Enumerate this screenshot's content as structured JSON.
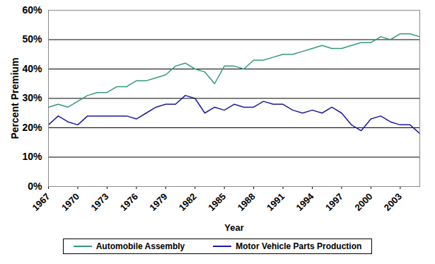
{
  "chart_data": {
    "type": "line",
    "x_label": "Year",
    "y_label": "Percent Premium",
    "x": [
      1967,
      1968,
      1969,
      1970,
      1971,
      1972,
      1973,
      1974,
      1975,
      1976,
      1977,
      1978,
      1979,
      1980,
      1981,
      1982,
      1983,
      1984,
      1985,
      1986,
      1987,
      1988,
      1989,
      1990,
      1991,
      1992,
      1993,
      1994,
      1995,
      1996,
      1997,
      1998,
      1999,
      2000,
      2001,
      2002,
      2003,
      2004,
      2005
    ],
    "series": [
      {
        "name": "Automobile Assembly",
        "color": "#339980",
        "values": [
          27,
          28,
          27,
          29,
          31,
          32,
          32,
          34,
          34,
          36,
          36,
          37,
          38,
          41,
          42,
          40,
          39,
          35,
          41,
          41,
          40,
          43,
          43,
          44,
          45,
          45,
          46,
          47,
          48,
          47,
          47,
          48,
          49,
          49,
          51,
          50,
          52,
          52,
          51
        ]
      },
      {
        "name": "Motor Vehicle Parts Production",
        "color": "#1a1aa0",
        "values": [
          21,
          24,
          22,
          21,
          24,
          24,
          24,
          24,
          24,
          23,
          25,
          27,
          28,
          28,
          31,
          30,
          25,
          27,
          26,
          28,
          27,
          27,
          29,
          28,
          28,
          26,
          25,
          26,
          25,
          27,
          25,
          21,
          19,
          23,
          24,
          22,
          21,
          21,
          18
        ]
      }
    ],
    "xlim": [
      1967,
      2005
    ],
    "xticks": [
      1967,
      1970,
      1973,
      1976,
      1979,
      1982,
      1985,
      1988,
      1991,
      1994,
      1997,
      2000,
      2003
    ],
    "ylim": [
      0,
      60
    ],
    "yticks": [
      {
        "value": 0,
        "label": "0%"
      },
      {
        "value": 10,
        "label": "10%"
      },
      {
        "value": 20,
        "label": "20%"
      },
      {
        "value": 30,
        "label": "30%"
      },
      {
        "value": 40,
        "label": "40%"
      },
      {
        "value": 50,
        "label": "50%"
      },
      {
        "value": 60,
        "label": "60%"
      }
    ],
    "grid": true,
    "legend": "bottom"
  }
}
